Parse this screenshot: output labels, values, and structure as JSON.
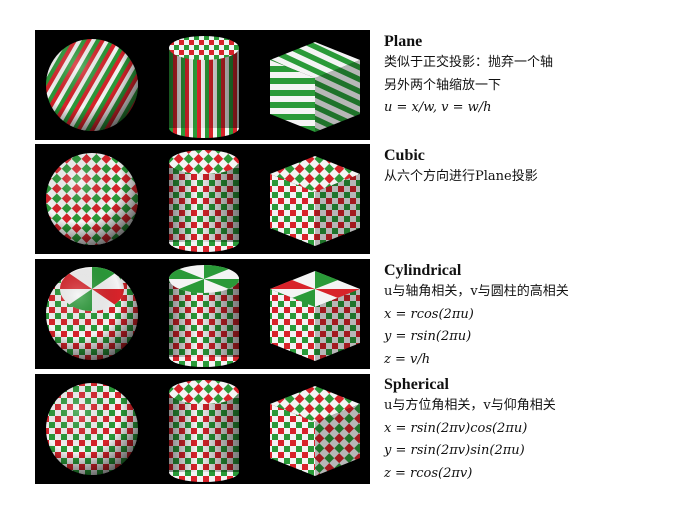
{
  "sections": [
    {
      "title": "Plane",
      "lines": [
        "类似于正交投影：抛弃一个轴",
        "另外两个轴缩放一下",
        "u = x/w, v = w/h"
      ],
      "math_lines": [
        false,
        false,
        true
      ]
    },
    {
      "title": "Cubic",
      "lines": [
        "从六个方向进行Plane投影"
      ],
      "math_lines": [
        false
      ]
    },
    {
      "title": "Cylindrical",
      "lines": [
        "u与轴角相关，v与圆柱的高相关",
        "x = rcos(2πu)",
        "y = rsin(2πu)",
        "z = v/h"
      ],
      "math_lines": [
        false,
        true,
        true,
        true
      ]
    },
    {
      "title": "Spherical",
      "lines": [
        "u与方位角相关，v与仰角相关",
        "x = rsin(2πv)cos(2πu)",
        "y = rsin(2πv)sin(2πu)",
        "z = rcos(2πv)"
      ],
      "math_lines": [
        false,
        true,
        true,
        true
      ]
    }
  ],
  "colors": {
    "red": "#d8232a",
    "green": "#2a9a38",
    "white": "#f4f4f4",
    "background": "#000000"
  },
  "objects": [
    "sphere",
    "cylinder",
    "cube"
  ]
}
